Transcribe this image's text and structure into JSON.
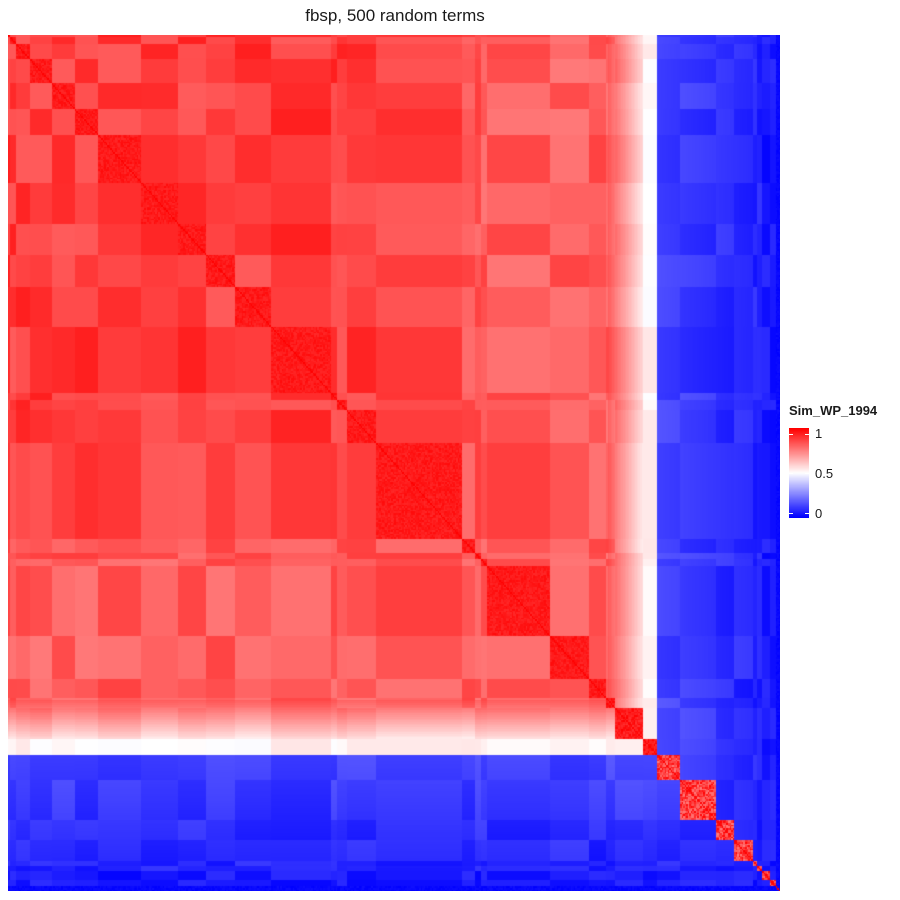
{
  "chart_data": {
    "type": "heatmap",
    "title": "fbsp, 500 random terms",
    "xlabel": "",
    "ylabel": "",
    "n_terms": 500,
    "legend": {
      "title": "Sim_WP_1994",
      "placement": "right",
      "ticks": [
        1,
        0.5,
        0
      ],
      "tick_labels": [
        "1",
        "0.5",
        "0"
      ]
    },
    "color_scale": {
      "low": "#0000ff",
      "mid": "#ffffff",
      "high": "#ff0000",
      "min": 0,
      "max": 1,
      "midpoint": 0.5
    },
    "cluster_edges": [
      0,
      1,
      5,
      14,
      28,
      43,
      58,
      86,
      110,
      128,
      147,
      170,
      209,
      213,
      219,
      238,
      294,
      302,
      306,
      310,
      351,
      376,
      387,
      393,
      411,
      420,
      435,
      458,
      470,
      482,
      485,
      488,
      493,
      497,
      500
    ],
    "block_values": {
      "red_region_top": 0.88,
      "red_region_bottom": 0.82,
      "within_cluster": 0.98,
      "transition_band": 0.55,
      "blue_region": 0.05,
      "outlier_terms": 0.0
    }
  }
}
